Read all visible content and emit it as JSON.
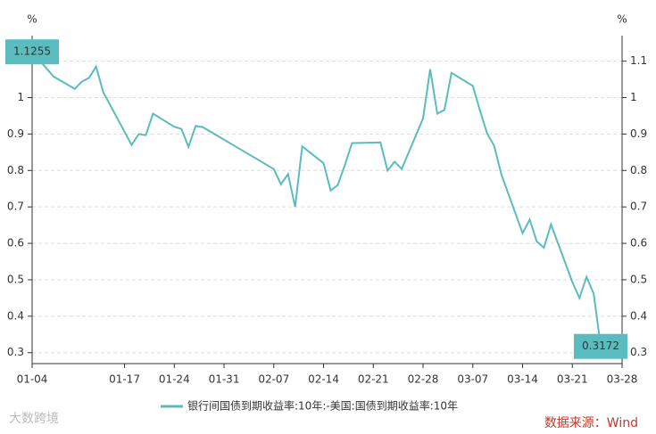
{
  "chart_data": {
    "type": "line",
    "y_label": "%",
    "y2_label": "%",
    "x": [
      "01-04",
      "01-07",
      "01-10",
      "01-11",
      "01-12",
      "01-13",
      "01-14",
      "01-18",
      "01-19",
      "01-20",
      "01-21",
      "01-24",
      "01-25",
      "01-26",
      "01-27",
      "01-28",
      "02-07",
      "02-08",
      "02-09",
      "02-10",
      "02-11",
      "02-14",
      "02-15",
      "02-16",
      "02-17",
      "02-18",
      "02-22",
      "02-23",
      "02-24",
      "02-25",
      "02-28",
      "03-01",
      "03-02",
      "03-03",
      "03-04",
      "03-07",
      "03-08",
      "03-09",
      "03-10",
      "03-11",
      "03-14",
      "03-15",
      "03-16",
      "03-17",
      "03-18",
      "03-21",
      "03-22",
      "03-23",
      "03-24",
      "03-25"
    ],
    "series": [
      {
        "name": "银行间国债到期收益率:10年:-美国:国债到期收益率:10年",
        "color": "#5bbcbf",
        "values": [
          1.1255,
          1.058,
          1.024,
          1.044,
          1.054,
          1.085,
          1.015,
          0.87,
          0.9,
          0.897,
          0.956,
          0.92,
          0.914,
          0.865,
          0.922,
          0.919,
          0.804,
          0.762,
          0.79,
          0.7,
          0.866,
          0.82,
          0.745,
          0.76,
          0.815,
          0.875,
          0.877,
          0.8,
          0.824,
          0.804,
          0.943,
          1.078,
          0.956,
          0.966,
          1.068,
          1.032,
          0.965,
          0.902,
          0.868,
          0.79,
          0.628,
          0.665,
          0.605,
          0.588,
          0.652,
          0.494,
          0.45,
          0.508,
          0.462,
          0.3172
        ]
      }
    ],
    "xlim": [
      "01-04",
      "03-28"
    ],
    "xticks": [
      "01-04",
      "01-17",
      "01-24",
      "01-31",
      "02-07",
      "02-14",
      "02-21",
      "02-28",
      "03-07",
      "03-14",
      "03-21",
      "03-28"
    ],
    "ylim": [
      0.27,
      1.17
    ],
    "yticks": [
      0.3,
      0.4,
      0.5,
      0.6,
      0.7,
      0.8,
      0.9,
      1,
      1.1
    ],
    "y2lim": [
      0.27,
      1.17
    ],
    "y2ticks": [
      0.3,
      0.4,
      0.5,
      0.6,
      0.7,
      0.8,
      0.9,
      1,
      1.1
    ],
    "grid": true,
    "source": "数据来源：Wind",
    "watermark": "大数跨境"
  }
}
